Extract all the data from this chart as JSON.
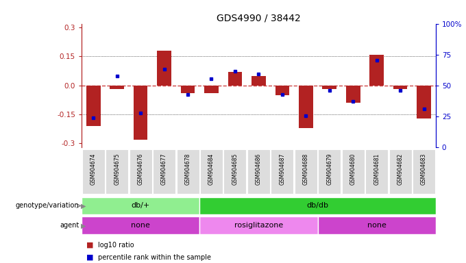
{
  "title": "GDS4990 / 38442",
  "samples": [
    "GSM904674",
    "GSM904675",
    "GSM904676",
    "GSM904677",
    "GSM904678",
    "GSM904684",
    "GSM904685",
    "GSM904686",
    "GSM904687",
    "GSM904688",
    "GSM904679",
    "GSM904680",
    "GSM904681",
    "GSM904682",
    "GSM904683"
  ],
  "log10_ratio": [
    -0.21,
    -0.02,
    -0.28,
    0.18,
    -0.04,
    -0.04,
    0.07,
    0.05,
    -0.05,
    -0.22,
    -0.02,
    -0.09,
    0.16,
    -0.02,
    -0.17
  ],
  "percentile": [
    22,
    58,
    26,
    64,
    42,
    56,
    62,
    60,
    42,
    24,
    46,
    36,
    72,
    46,
    30
  ],
  "genotype_groups": [
    {
      "label": "db/+",
      "start": 0,
      "end": 5,
      "color": "#90EE90"
    },
    {
      "label": "db/db",
      "start": 5,
      "end": 15,
      "color": "#32CD32"
    }
  ],
  "agent_groups": [
    {
      "label": "none",
      "start": 0,
      "end": 5,
      "color": "#CC44CC"
    },
    {
      "label": "rosiglitazone",
      "start": 5,
      "end": 10,
      "color": "#EE88EE"
    },
    {
      "label": "none",
      "start": 10,
      "end": 15,
      "color": "#CC44CC"
    }
  ],
  "bar_color": "#B22222",
  "dot_color": "#0000CC",
  "zero_line_color": "#CC4444",
  "grid_color": "#000000",
  "ylim": [
    -0.32,
    0.32
  ],
  "y2lim": [
    0,
    100
  ],
  "yticks": [
    -0.3,
    -0.15,
    0.0,
    0.15,
    0.3
  ],
  "y2ticks": [
    0,
    25,
    50,
    75,
    100
  ],
  "bg_color": "#FFFFFF",
  "title_fontsize": 10,
  "label_gray": "#DDDDDD"
}
